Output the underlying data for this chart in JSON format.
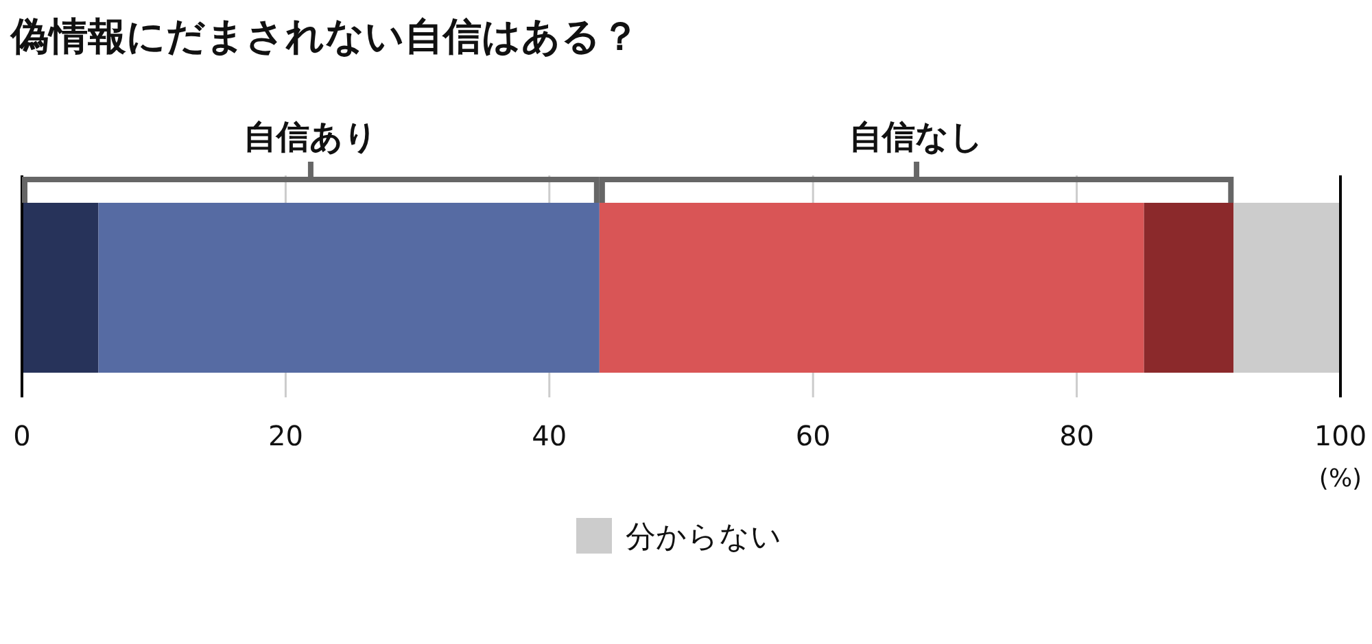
{
  "chart_data": {
    "type": "bar",
    "orientation": "horizontal",
    "stacked": true,
    "title": "偽情報にだまされない自信はある？",
    "xlabel": "(%)",
    "categories": [
      null
    ],
    "series": [
      {
        "color": "#27335a",
        "values": [
          5.8
        ]
      },
      {
        "color": "#566ba3",
        "values": [
          38.0
        ]
      },
      {
        "color": "#d95556",
        "values": [
          41.3
        ]
      },
      {
        "color": "#8b292b",
        "values": [
          6.8
        ]
      },
      {
        "name": "分からない",
        "color": "#cccccc",
        "values": [
          8.1
        ]
      }
    ],
    "xlim": [
      0,
      100
    ],
    "xticks": [
      0,
      20,
      40,
      60,
      80,
      100
    ],
    "grid": "x",
    "legend": "bottom",
    "annotations": [
      "自信あり",
      "自信なし"
    ]
  }
}
